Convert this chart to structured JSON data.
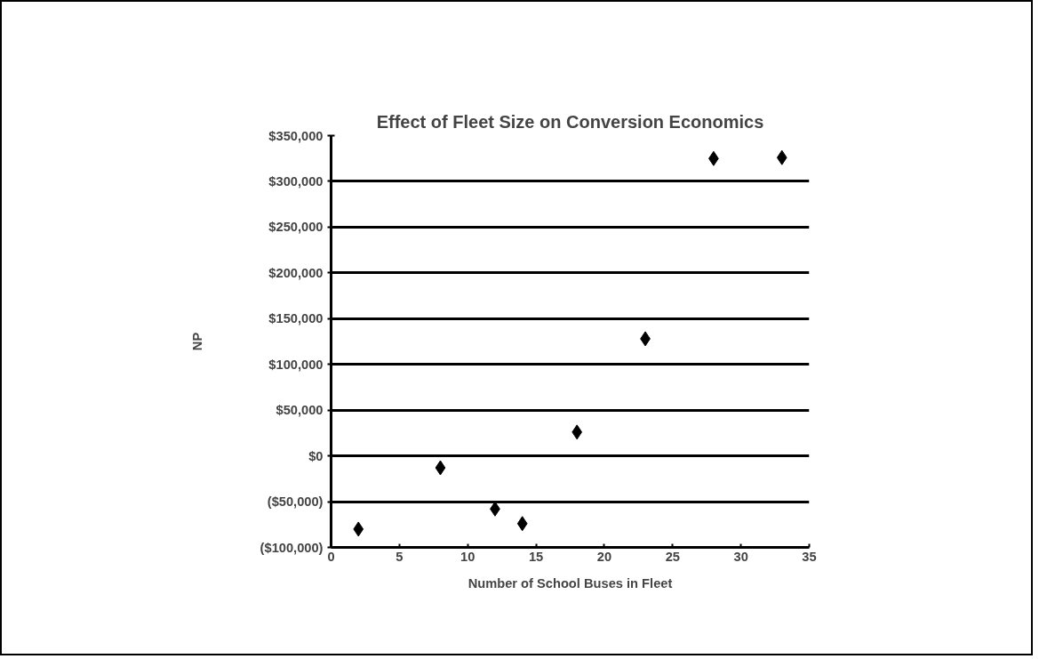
{
  "chart_data": {
    "type": "scatter",
    "title": "Effect of Fleet Size on Conversion Economics",
    "xlabel": "Number of School Buses in Fleet",
    "ylabel": "NP",
    "x": [
      2,
      8,
      12,
      14,
      18,
      23,
      28,
      33
    ],
    "series": [
      {
        "color": "#000000",
        "values": [
          -80000,
          -13000,
          -58000,
          -74000,
          26000,
          128000,
          325000,
          326000
        ]
      }
    ],
    "marker": "diamond",
    "grid": "y",
    "xlim": [
      0,
      35
    ],
    "xticks": [
      0,
      5,
      10,
      15,
      20,
      25,
      30,
      35
    ],
    "ylim": [
      -100000,
      350000
    ],
    "yticks": [
      {
        "value": -100000,
        "label": "($100,000)"
      },
      {
        "value": -50000,
        "label": "($50,000)"
      },
      {
        "value": 0,
        "label": "$0"
      },
      {
        "value": 50000,
        "label": "$50,000"
      },
      {
        "value": 100000,
        "label": "$100,000"
      },
      {
        "value": 150000,
        "label": "$150,000"
      },
      {
        "value": 200000,
        "label": "$200,000"
      },
      {
        "value": 250000,
        "label": "$250,000"
      },
      {
        "value": 300000,
        "label": "$300,000"
      },
      {
        "value": 350000,
        "label": "$350,000"
      }
    ]
  }
}
